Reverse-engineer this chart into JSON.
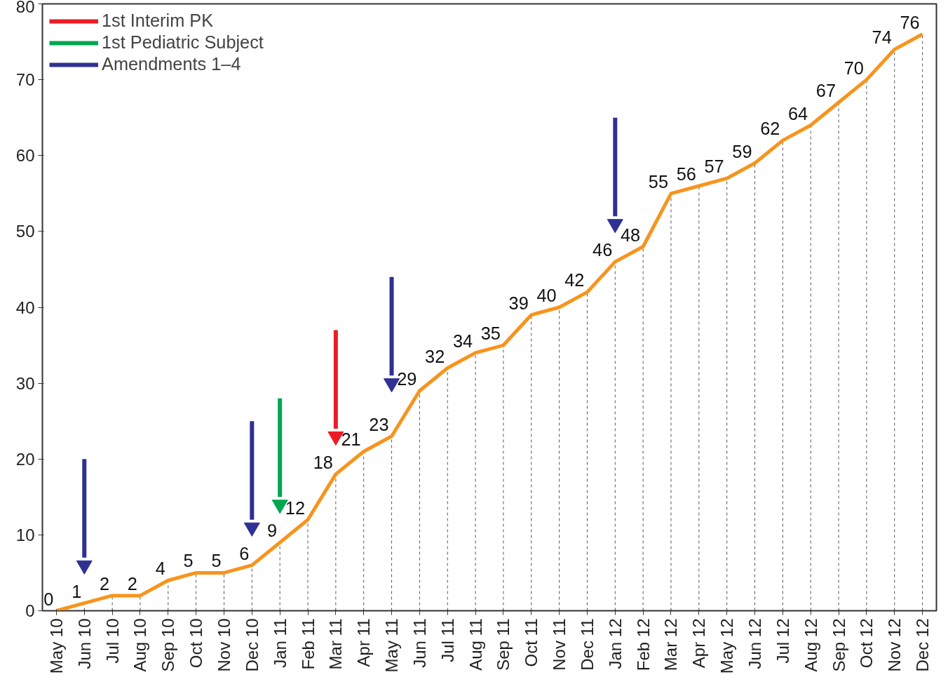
{
  "chart_data": {
    "type": "line",
    "categories": [
      "May 10",
      "Jun 10",
      "Jul 10",
      "Aug 10",
      "Sep 10",
      "Oct 10",
      "Nov 10",
      "Dec 10",
      "Jan 11",
      "Feb 11",
      "Mar 11",
      "Apr 11",
      "May 11",
      "Jun 11",
      "Jul 11",
      "Aug 11",
      "Sep 11",
      "Oct 11",
      "Nov 11",
      "Dec 11",
      "Jan 12",
      "Feb 12",
      "Mar 12",
      "Apr 12",
      "May 12",
      "Jun 12",
      "Jul 12",
      "Aug 12",
      "Sep 12",
      "Oct 12",
      "Nov 12",
      "Dec 12"
    ],
    "series": [
      {
        "color": "#f7941d",
        "data_labels": true,
        "values": [
          0,
          1,
          2,
          2,
          4,
          5,
          5,
          6,
          9,
          12,
          18,
          21,
          23,
          29,
          32,
          34,
          35,
          39,
          40,
          42,
          46,
          48,
          55,
          56,
          57,
          59,
          62,
          64,
          67,
          70,
          74,
          76
        ]
      },
      {
        "name": "1st Interim PK",
        "type": "scatter",
        "marker": "triangle",
        "color": "#ed1c24",
        "x": [
          "Mar 11"
        ],
        "values": [
          23
        ]
      },
      {
        "name": "1st Pediatric Subject",
        "type": "scatter",
        "marker": "triangle",
        "color": "#00a651",
        "x": [
          "Jan 11"
        ],
        "values": [
          14
        ]
      },
      {
        "name": "Amendments 1–4",
        "type": "scatter",
        "marker": "triangle",
        "color": "#2e3192",
        "x": [
          "Jun 10",
          "Dec 10",
          "May 11",
          "Jan 12"
        ],
        "values": [
          6,
          11,
          30,
          51
        ]
      }
    ],
    "ylim": [
      0,
      80
    ],
    "yticks": [
      0,
      10,
      20,
      30,
      40,
      50,
      60,
      70,
      80
    ],
    "grid": "x",
    "legend": "top left",
    "marker": "none",
    "line_style": "solid"
  }
}
